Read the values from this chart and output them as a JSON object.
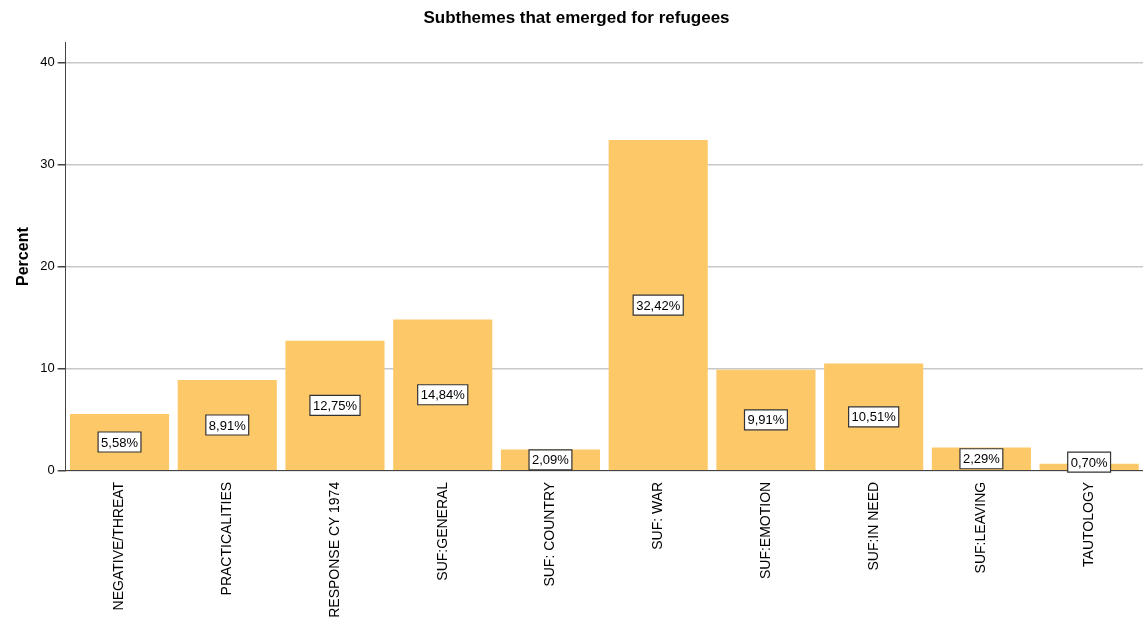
{
  "chart_data": {
    "type": "bar",
    "title": "Subthemes that emerged for refugees",
    "ylabel": "Percent",
    "categories": [
      "NEGATIVE/THREAT",
      "PRACTICALITIES",
      "RESPONSE CY 1974",
      "SUF:GENERAL",
      "SUF: COUNTRY",
      "SUF: WAR",
      "SUF:EMOTION",
      "SUF:IN NEED",
      "SUF:LEAVING",
      "TAUTOLOGY"
    ],
    "values": [
      5.58,
      8.91,
      12.75,
      14.84,
      2.09,
      32.42,
      9.91,
      10.51,
      2.29,
      0.7
    ],
    "value_labels": [
      "5,58%",
      "8,91%",
      "12,75%",
      "14,84%",
      "2,09%",
      "32,42%",
      "9,91%",
      "10,51%",
      "2,29%",
      "0,70%"
    ],
    "color": "#fdc968",
    "ylim": [
      0,
      42
    ],
    "yticks": [
      0,
      10,
      20,
      30,
      40
    ],
    "grid": "y",
    "legend": false
  }
}
